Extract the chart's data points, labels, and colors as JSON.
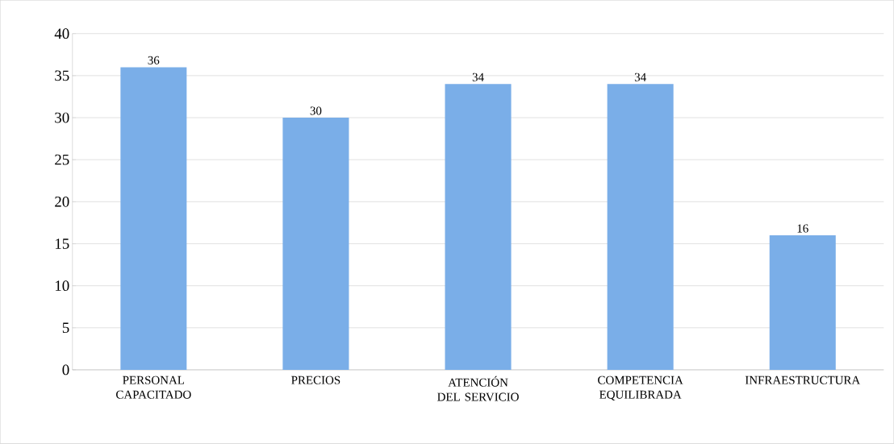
{
  "chart_data": {
    "type": "bar",
    "categories": [
      "PERSONAL CAPACITADO",
      "PRECIOS",
      "ATENCIÓN DEL SERVICIO",
      "COMPETENCIA EQUILIBRADA",
      "INFRAESTRUCTURA"
    ],
    "values": [
      36,
      30,
      34,
      34,
      16
    ],
    "color": "#7aaee8",
    "ylim": [
      0,
      40
    ],
    "yticks": [
      0,
      5,
      10,
      15,
      20,
      25,
      30,
      35,
      40
    ],
    "grid": "y",
    "data_labels": true
  }
}
